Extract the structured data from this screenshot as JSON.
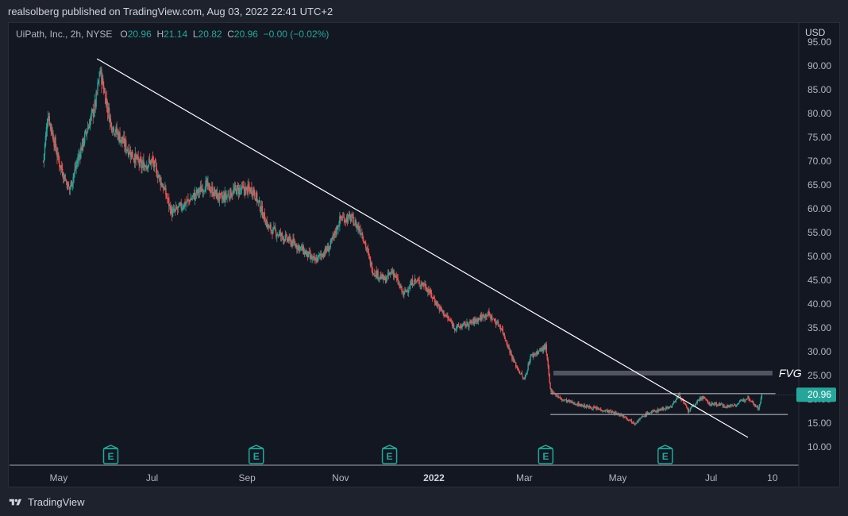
{
  "header": {
    "publisher_line": "realsolberg published on TradingView.com, Aug 03, 2022 22:41 UTC+2"
  },
  "legend": {
    "symbol": "UiPath, Inc., 2h, NYSE",
    "open_label": "O",
    "open_value": "20.96",
    "high_label": "H",
    "high_value": "21.14",
    "low_label": "L",
    "low_value": "20.82",
    "close_label": "C",
    "close_value": "20.96",
    "change": "−0.00 (−0.02%)"
  },
  "axis": {
    "currency": "USD",
    "last_price": "20.96"
  },
  "footer": {
    "brand": "TradingView"
  },
  "colors": {
    "background": "#131722",
    "up": "#26a69a",
    "down": "#ef5350",
    "trendline": "#ffffff",
    "level_line": "#9598a1",
    "fvg_zone": "#5d606b",
    "earnings": "#26a69a"
  },
  "chart_data": {
    "type": "candlestick",
    "title": "UiPath, Inc., 2h, NYSE",
    "ylabel": "USD",
    "ylim": [
      7.5,
      96
    ],
    "y_ticks": [
      "10.00",
      "15.00",
      "20.00",
      "25.00",
      "30.00",
      "35.00",
      "40.00",
      "45.00",
      "50.00",
      "55.00",
      "60.00",
      "65.00",
      "70.00",
      "75.00",
      "80.00",
      "85.00",
      "90.00",
      "95.00"
    ],
    "x_tick_labels": [
      "May",
      "Jul",
      "Sep",
      "Nov",
      "2022",
      "Mar",
      "May",
      "Jul",
      "10"
    ],
    "x_ticks": [
      "2021-05",
      "2021-07",
      "2021-09",
      "2021-11",
      "2022-01",
      "2022-03",
      "2022-05",
      "2022-07",
      "2022-08-10"
    ],
    "price_path": [
      [
        "2021-04-21",
        70
      ],
      [
        "2021-04-24",
        80
      ],
      [
        "2021-05-01",
        70
      ],
      [
        "2021-05-08",
        64
      ],
      [
        "2021-05-15",
        72
      ],
      [
        "2021-05-25",
        82
      ],
      [
        "2021-05-28",
        89
      ],
      [
        "2021-06-04",
        78
      ],
      [
        "2021-06-14",
        73
      ],
      [
        "2021-06-24",
        69
      ],
      [
        "2021-07-01",
        70
      ],
      [
        "2021-07-09",
        64
      ],
      [
        "2021-07-14",
        59
      ],
      [
        "2021-07-26",
        62
      ],
      [
        "2021-08-05",
        65
      ],
      [
        "2021-08-15",
        62
      ],
      [
        "2021-08-25",
        64
      ],
      [
        "2021-09-05",
        64
      ],
      [
        "2021-09-15",
        56
      ],
      [
        "2021-09-25",
        54
      ],
      [
        "2021-10-05",
        52
      ],
      [
        "2021-10-15",
        49
      ],
      [
        "2021-10-25",
        52
      ],
      [
        "2021-11-01",
        58
      ],
      [
        "2021-11-08",
        58
      ],
      [
        "2021-11-15",
        55
      ],
      [
        "2021-11-22",
        47
      ],
      [
        "2021-11-30",
        45
      ],
      [
        "2021-12-05",
        47
      ],
      [
        "2021-12-12",
        42
      ],
      [
        "2021-12-19",
        45
      ],
      [
        "2021-12-26",
        44
      ],
      [
        "2022-01-05",
        39
      ],
      [
        "2022-01-15",
        35
      ],
      [
        "2022-01-25",
        36
      ],
      [
        "2022-02-05",
        38
      ],
      [
        "2022-02-14",
        35
      ],
      [
        "2022-02-22",
        28
      ],
      [
        "2022-03-01",
        24
      ],
      [
        "2022-03-05",
        29
      ],
      [
        "2022-03-15",
        31
      ],
      [
        "2022-03-18",
        22
      ],
      [
        "2022-03-25",
        20
      ],
      [
        "2022-04-10",
        18.5
      ],
      [
        "2022-04-25",
        17.5
      ],
      [
        "2022-05-05",
        16.5
      ],
      [
        "2022-05-12",
        15
      ],
      [
        "2022-05-20",
        17
      ],
      [
        "2022-05-30",
        18
      ],
      [
        "2022-06-05",
        18.5
      ],
      [
        "2022-06-10",
        21
      ],
      [
        "2022-06-16",
        17.5
      ],
      [
        "2022-06-25",
        20.5
      ],
      [
        "2022-06-30",
        19
      ],
      [
        "2022-07-05",
        19
      ],
      [
        "2022-07-12",
        18.5
      ],
      [
        "2022-07-18",
        19
      ],
      [
        "2022-07-25",
        20.5
      ],
      [
        "2022-08-01",
        18
      ],
      [
        "2022-08-03",
        20.96
      ]
    ],
    "trendline": {
      "from": [
        "2021-05-26",
        91.5
      ],
      "to": [
        "2022-07-25",
        12
      ]
    },
    "horizontal_levels": [
      {
        "price": 21.2,
        "from": "2022-03-18",
        "to": "2022-08-12"
      },
      {
        "price": 16.8,
        "from": "2022-03-18",
        "to": "2022-08-20"
      }
    ],
    "fvg_zone": {
      "label": "FVG",
      "top": 26,
      "bottom": 25,
      "from": "2022-03-20",
      "to": "2022-08-10"
    },
    "earnings_markers": {
      "label": "E",
      "dates": [
        "2021-06-04",
        "2021-09-07",
        "2021-12-03",
        "2022-03-15",
        "2022-06-01"
      ]
    },
    "last_price": 20.96,
    "legend": "none",
    "grid": false
  }
}
